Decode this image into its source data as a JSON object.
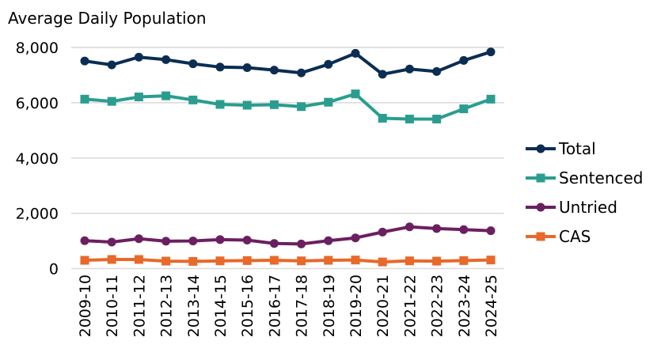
{
  "chart_data": {
    "type": "line",
    "title": "Average Daily Population",
    "xlabel": "",
    "ylabel": "",
    "ylim": [
      0,
      8000
    ],
    "yticks": [
      0,
      2000,
      4000,
      6000,
      8000
    ],
    "ytick_labels": [
      "0",
      "2,000",
      "4,000",
      "6,000",
      "8,000"
    ],
    "grid": true,
    "legend_position": "right",
    "categories": [
      "2009-10",
      "2010-11",
      "2011-12",
      "2012-13",
      "2013-14",
      "2014-15",
      "2015-16",
      "2016-17",
      "2017-18",
      "2018-19",
      "2019-20",
      "2020-21",
      "2021-22",
      "2022-23",
      "2023-24",
      "2024-25"
    ],
    "series": [
      {
        "name": "Total",
        "color": "#0b2d52",
        "marker": "circle",
        "values": [
          7510,
          7370,
          7650,
          7560,
          7410,
          7290,
          7270,
          7180,
          7080,
          7390,
          7790,
          7030,
          7220,
          7130,
          7530,
          7840
        ]
      },
      {
        "name": "Sentenced",
        "color": "#2a9d8f",
        "marker": "square",
        "values": [
          6130,
          6050,
          6210,
          6250,
          6100,
          5940,
          5910,
          5930,
          5860,
          6020,
          6320,
          5440,
          5410,
          5410,
          5780,
          6130
        ]
      },
      {
        "name": "Untried",
        "color": "#6b1f60",
        "marker": "circle",
        "values": [
          1010,
          960,
          1080,
          990,
          1000,
          1050,
          1030,
          910,
          890,
          1010,
          1110,
          1320,
          1510,
          1450,
          1410,
          1370
        ]
      },
      {
        "name": "CAS",
        "color": "#e8692a",
        "marker": "square",
        "values": [
          300,
          330,
          330,
          270,
          260,
          280,
          290,
          300,
          280,
          300,
          310,
          240,
          280,
          270,
          290,
          310
        ]
      }
    ]
  }
}
